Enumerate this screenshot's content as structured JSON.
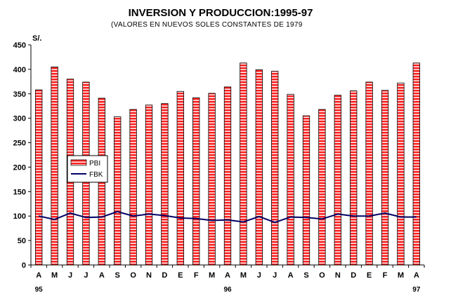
{
  "chart_data": {
    "type": "bar",
    "title": "INVERSION Y PRODUCCION:1995-97",
    "subtitle": "(VALORES EN NUEVOS SOLES CONSTANTES DE 1979",
    "ylabel": "S/.",
    "xlabel": "",
    "ylim": [
      0,
      450
    ],
    "yticks": [
      0,
      50,
      100,
      150,
      200,
      250,
      300,
      350,
      400,
      450
    ],
    "categories": [
      "A",
      "M",
      "J",
      "J",
      "A",
      "S",
      "O",
      "N",
      "D",
      "E",
      "F",
      "M",
      "A",
      "M",
      "J",
      "J",
      "A",
      "S",
      "O",
      "N",
      "D",
      "E",
      "F",
      "M",
      "A"
    ],
    "year_labels": [
      {
        "index": 0,
        "label": "95"
      },
      {
        "index": 12,
        "label": "96"
      },
      {
        "index": 24,
        "label": "97"
      }
    ],
    "series": [
      {
        "name": "PBI",
        "kind": "bar",
        "color": "#ff2020",
        "values": [
          358,
          405,
          380,
          374,
          341,
          303,
          318,
          327,
          330,
          355,
          342,
          351,
          364,
          413,
          399,
          396,
          349,
          305,
          318,
          347,
          356,
          374,
          357,
          372,
          413
        ]
      },
      {
        "name": "FBK",
        "kind": "line",
        "color": "#000066",
        "values": [
          100,
          93,
          106,
          97,
          98,
          109,
          100,
          104,
          101,
          96,
          95,
          91,
          92,
          88,
          99,
          87,
          98,
          97,
          94,
          104,
          100,
          100,
          106,
          98,
          98
        ]
      }
    ],
    "legend": {
      "position": "left-middle",
      "entries": [
        "PBI",
        "FBK"
      ]
    },
    "grid": false
  }
}
